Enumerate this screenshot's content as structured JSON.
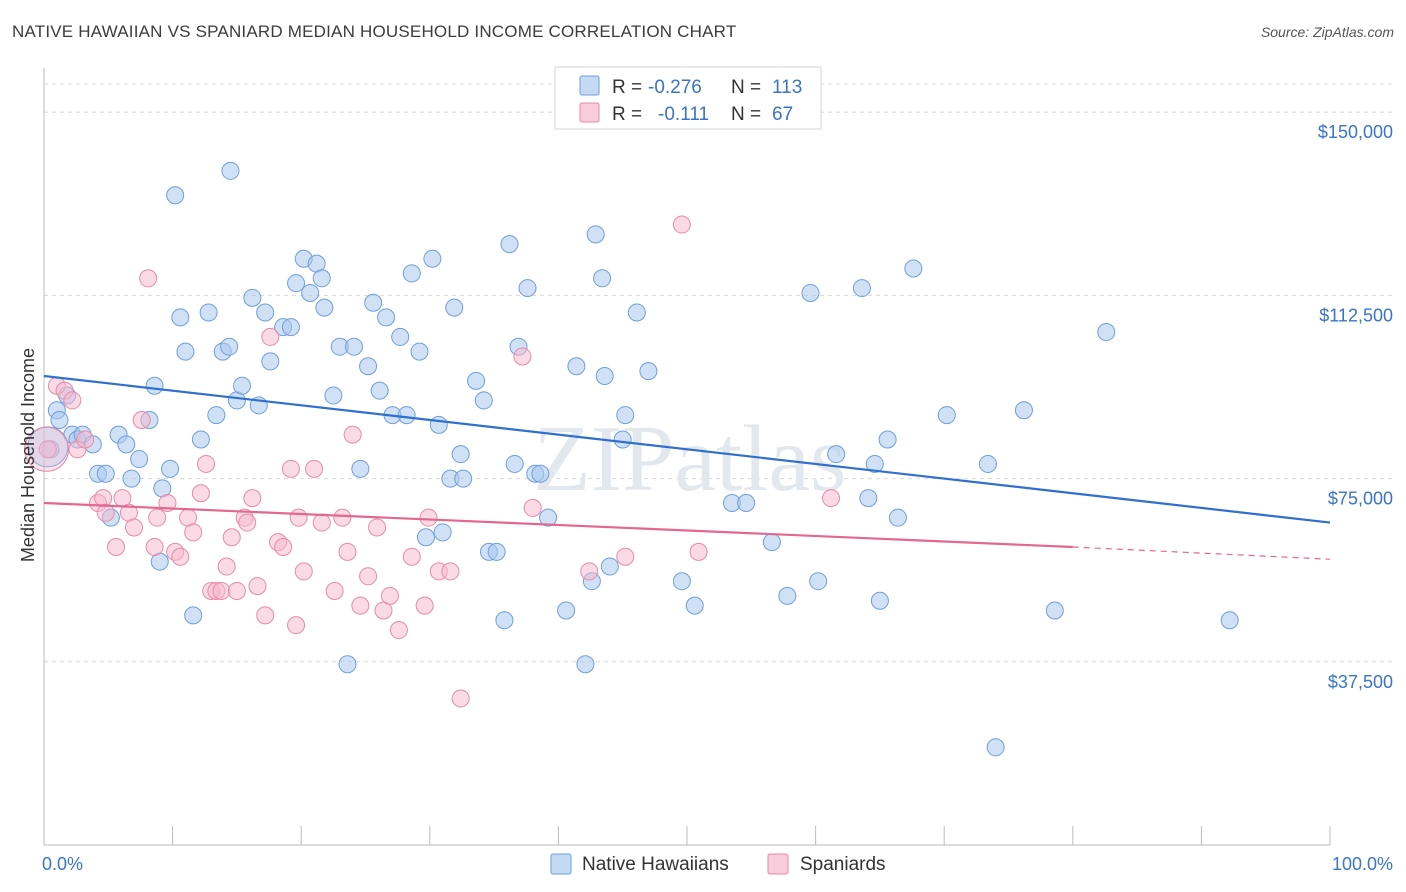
{
  "title": "NATIVE HAWAIIAN VS SPANIARD MEDIAN HOUSEHOLD INCOME CORRELATION CHART",
  "source": "Source: ZipAtlas.com",
  "colors": {
    "blue_fill": "#a9c8ef",
    "blue_stroke": "#6f9fdc",
    "blue_line": "#2f6fcf",
    "pink_fill": "#f5b8cb",
    "pink_stroke": "#e98aa8",
    "pink_line": "#e2688f",
    "tick_text": "#3a74c9",
    "grid": "#d9d9d9"
  },
  "legend": {
    "rows": [
      {
        "r_label": "R =",
        "r_value": "-0.276",
        "n_label": "N =",
        "n_value": "113"
      },
      {
        "r_label": "R =",
        "r_value": "-0.111",
        "n_label": "N =",
        "n_value": "67"
      }
    ]
  },
  "watermark": "ZIPatlas",
  "chart_data": {
    "type": "scatter",
    "title": "NATIVE HAWAIIAN VS SPANIARD MEDIAN HOUSEHOLD INCOME CORRELATION CHART",
    "xlabel": "",
    "ylabel": "Median Household Income",
    "xlim": [
      0,
      100
    ],
    "ylim": [
      0,
      157000
    ],
    "x_tick_labels": [
      "0.0%",
      "100.0%"
    ],
    "y_ticks": [
      37500,
      75000,
      112500,
      150000
    ],
    "y_tick_labels": [
      "$37,500",
      "$75,000",
      "$112,500",
      "$150,000"
    ],
    "grid": "horizontal dashed",
    "legend_position": "top-center",
    "series": [
      {
        "name": "Native Hawaiians",
        "r": -0.276,
        "n": 113,
        "trend": {
          "x0": 0,
          "y0": 96000,
          "x1": 100,
          "y1": 66000
        },
        "points": [
          [
            0.5,
            81000
          ],
          [
            1,
            89000
          ],
          [
            1.2,
            87000
          ],
          [
            1.8,
            92000
          ],
          [
            2.2,
            84000
          ],
          [
            2.6,
            83000
          ],
          [
            3,
            84000
          ],
          [
            3.8,
            82000
          ],
          [
            4.2,
            76000
          ],
          [
            4.8,
            76000
          ],
          [
            5.2,
            67000
          ],
          [
            5.8,
            84000
          ],
          [
            6.4,
            82000
          ],
          [
            6.8,
            75000
          ],
          [
            7.4,
            79000
          ],
          [
            8.2,
            87000
          ],
          [
            8.6,
            94000
          ],
          [
            9,
            58000
          ],
          [
            9.2,
            73000
          ],
          [
            9.8,
            77000
          ],
          [
            10.2,
            133000
          ],
          [
            10.6,
            108000
          ],
          [
            11,
            101000
          ],
          [
            11.6,
            47000
          ],
          [
            12.2,
            83000
          ],
          [
            12.8,
            109000
          ],
          [
            13.4,
            88000
          ],
          [
            13.9,
            101000
          ],
          [
            14.4,
            102000
          ],
          [
            15,
            91000
          ],
          [
            15.4,
            94000
          ],
          [
            14.5,
            138000
          ],
          [
            16.2,
            112000
          ],
          [
            16.7,
            90000
          ],
          [
            17.2,
            109000
          ],
          [
            17.6,
            99000
          ],
          [
            18.6,
            106000
          ],
          [
            19.2,
            106000
          ],
          [
            19.6,
            115000
          ],
          [
            20.2,
            120000
          ],
          [
            20.7,
            113000
          ],
          [
            21.2,
            119000
          ],
          [
            21.6,
            116000
          ],
          [
            21.8,
            110000
          ],
          [
            22.5,
            92000
          ],
          [
            23,
            102000
          ],
          [
            23.6,
            37000
          ],
          [
            24.1,
            102000
          ],
          [
            24.6,
            77000
          ],
          [
            25.2,
            98000
          ],
          [
            25.6,
            111000
          ],
          [
            26.1,
            93000
          ],
          [
            26.6,
            108000
          ],
          [
            27.1,
            88000
          ],
          [
            27.7,
            104000
          ],
          [
            28.2,
            88000
          ],
          [
            28.6,
            117000
          ],
          [
            29.2,
            101000
          ],
          [
            29.7,
            63000
          ],
          [
            30.2,
            120000
          ],
          [
            30.7,
            86000
          ],
          [
            31,
            64000
          ],
          [
            31.6,
            75000
          ],
          [
            31.9,
            110000
          ],
          [
            32.4,
            80000
          ],
          [
            32.6,
            75000
          ],
          [
            33.6,
            95000
          ],
          [
            34.2,
            91000
          ],
          [
            34.6,
            60000
          ],
          [
            35.2,
            60000
          ],
          [
            35.8,
            46000
          ],
          [
            36.2,
            123000
          ],
          [
            36.6,
            78000
          ],
          [
            36.9,
            102000
          ],
          [
            37.6,
            114000
          ],
          [
            38.2,
            76000
          ],
          [
            38.6,
            76000
          ],
          [
            39.2,
            67000
          ],
          [
            40.6,
            48000
          ],
          [
            41.4,
            98000
          ],
          [
            42.1,
            37000
          ],
          [
            42.6,
            54000
          ],
          [
            42.9,
            125000
          ],
          [
            43.4,
            116000
          ],
          [
            43.6,
            96000
          ],
          [
            44,
            57000
          ],
          [
            45,
            83000
          ],
          [
            45.2,
            88000
          ],
          [
            46.1,
            109000
          ],
          [
            47,
            97000
          ],
          [
            49.6,
            54000
          ],
          [
            50.6,
            49000
          ],
          [
            53.5,
            70000
          ],
          [
            54.6,
            70000
          ],
          [
            56.6,
            62000
          ],
          [
            57.8,
            51000
          ],
          [
            59.6,
            113000
          ],
          [
            60.2,
            54000
          ],
          [
            61.6,
            80000
          ],
          [
            63.6,
            114000
          ],
          [
            64.1,
            71000
          ],
          [
            64.6,
            78000
          ],
          [
            65,
            50000
          ],
          [
            65.6,
            83000
          ],
          [
            66.4,
            67000
          ],
          [
            67.6,
            118000
          ],
          [
            70.2,
            88000
          ],
          [
            73.4,
            78000
          ],
          [
            74,
            20000
          ],
          [
            76.2,
            89000
          ],
          [
            78.6,
            48000
          ],
          [
            82.6,
            105000
          ],
          [
            92.2,
            46000
          ]
        ]
      },
      {
        "name": "Spaniards",
        "r": -0.111,
        "n": 67,
        "trend": {
          "x0": 0,
          "y0": 70000,
          "x1": 80,
          "y1": 61000,
          "dashed_to": {
            "x": 100,
            "y": 58500
          }
        },
        "points": [
          [
            0.3,
            81000
          ],
          [
            1,
            94000
          ],
          [
            1.6,
            93000
          ],
          [
            2.2,
            91000
          ],
          [
            2.6,
            81000
          ],
          [
            3.2,
            83000
          ],
          [
            4.2,
            70000
          ],
          [
            4.6,
            71000
          ],
          [
            4.8,
            68000
          ],
          [
            5.6,
            61000
          ],
          [
            6.1,
            71000
          ],
          [
            6.6,
            68000
          ],
          [
            7,
            65000
          ],
          [
            7.6,
            87000
          ],
          [
            8.1,
            116000
          ],
          [
            8.6,
            61000
          ],
          [
            8.8,
            67000
          ],
          [
            9.6,
            70000
          ],
          [
            10.2,
            60000
          ],
          [
            10.6,
            59000
          ],
          [
            11.2,
            67000
          ],
          [
            11.6,
            64000
          ],
          [
            12.2,
            72000
          ],
          [
            12.6,
            78000
          ],
          [
            13,
            52000
          ],
          [
            13.4,
            52000
          ],
          [
            13.8,
            52000
          ],
          [
            14.2,
            57000
          ],
          [
            14.6,
            63000
          ],
          [
            15,
            52000
          ],
          [
            15.6,
            67000
          ],
          [
            15.8,
            66000
          ],
          [
            16.2,
            71000
          ],
          [
            16.6,
            53000
          ],
          [
            17.2,
            47000
          ],
          [
            17.6,
            104000
          ],
          [
            18.2,
            62000
          ],
          [
            18.6,
            61000
          ],
          [
            19.2,
            77000
          ],
          [
            19.6,
            45000
          ],
          [
            19.8,
            67000
          ],
          [
            20.2,
            56000
          ],
          [
            21,
            77000
          ],
          [
            21.6,
            66000
          ],
          [
            22.6,
            52000
          ],
          [
            23.2,
            67000
          ],
          [
            23.6,
            60000
          ],
          [
            24,
            84000
          ],
          [
            24.6,
            49000
          ],
          [
            25.2,
            55000
          ],
          [
            25.9,
            65000
          ],
          [
            26.4,
            48000
          ],
          [
            26.9,
            51000
          ],
          [
            27.6,
            44000
          ],
          [
            28.6,
            59000
          ],
          [
            29.6,
            49000
          ],
          [
            29.9,
            67000
          ],
          [
            30.7,
            56000
          ],
          [
            31.6,
            56000
          ],
          [
            32.4,
            30000
          ],
          [
            37.2,
            100000
          ],
          [
            38,
            69000
          ],
          [
            42.4,
            56000
          ],
          [
            45.2,
            59000
          ],
          [
            49.6,
            127000
          ],
          [
            50.9,
            60000
          ],
          [
            61.2,
            71000
          ]
        ]
      }
    ]
  },
  "bottom_legend": {
    "items": [
      {
        "label": "Native Hawaiians"
      },
      {
        "label": "Spaniards"
      }
    ]
  }
}
